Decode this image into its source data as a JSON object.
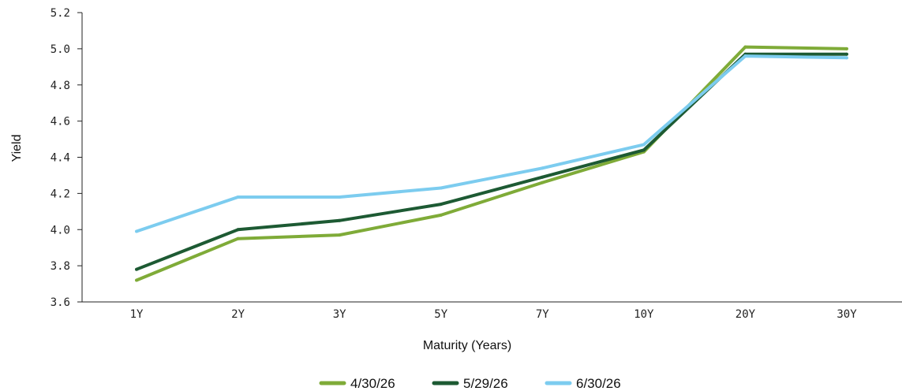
{
  "chart_data": {
    "type": "line",
    "categories": [
      "1Y",
      "2Y",
      "3Y",
      "5Y",
      "7Y",
      "10Y",
      "20Y",
      "30Y"
    ],
    "series": [
      {
        "name": "4/30/26",
        "color": "#7fab38",
        "values": [
          3.72,
          3.95,
          3.97,
          4.08,
          4.26,
          4.43,
          5.01,
          5.0
        ]
      },
      {
        "name": "5/29/26",
        "color": "#1d5a33",
        "values": [
          3.78,
          4.0,
          4.05,
          4.14,
          4.29,
          4.44,
          4.97,
          4.97
        ]
      },
      {
        "name": "6/30/26",
        "color": "#7cccef",
        "values": [
          3.99,
          4.18,
          4.18,
          4.23,
          4.34,
          4.47,
          4.96,
          4.95
        ]
      }
    ],
    "xlabel": "Maturity (Years)",
    "ylabel": "Yield",
    "ylim": [
      3.6,
      5.2
    ],
    "yticks": [
      "3.6",
      "3.8",
      "4.0",
      "4.2",
      "4.4",
      "4.6",
      "4.8",
      "5.0",
      "5.2"
    ],
    "grid": false,
    "legend_position": "bottom-center"
  }
}
